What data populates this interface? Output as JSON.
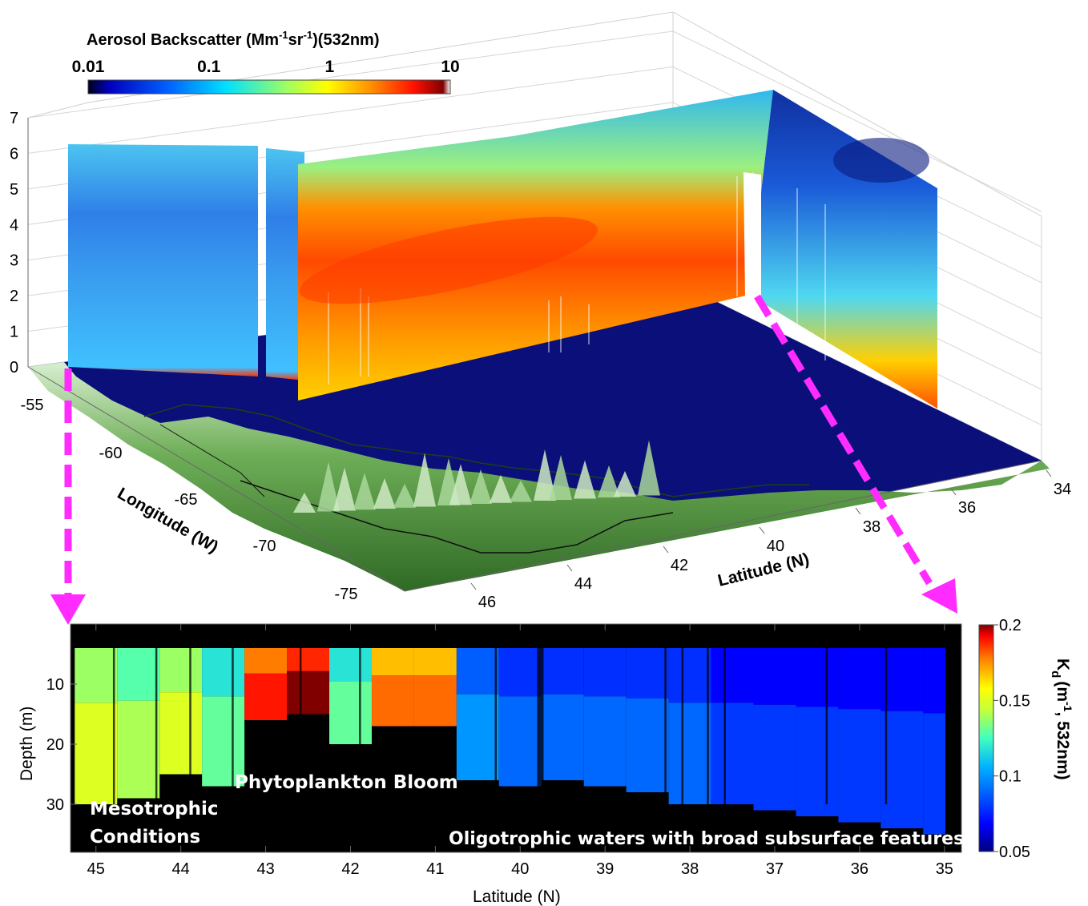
{
  "colors": {
    "magenta_arrow": "#ff2bff",
    "ocean": "#0b0f7a",
    "land": "#4c8a3c",
    "black": "#000000"
  },
  "colormaps": {
    "jet": [
      "#000080",
      "#0000ff",
      "#0080ff",
      "#00ffff",
      "#80ff80",
      "#ffff00",
      "#ff8000",
      "#ff0000",
      "#800000"
    ]
  },
  "chart_data": [
    {
      "type": "heatmap",
      "subtype": "3d-curtain",
      "colorbar": {
        "title_parts": [
          "Aerosol Backscatter (Mm",
          "-1",
          "sr",
          "-1",
          ")(532nm)"
        ],
        "ticks": [
          "0.01",
          "0.1",
          "1",
          "10"
        ],
        "scale": "log",
        "range": [
          0.01,
          10
        ],
        "placement": "top-left, horizontal"
      },
      "z_ticks": [
        "0",
        "1",
        "2",
        "3",
        "4",
        "5",
        "6",
        "7"
      ],
      "zlim": [
        0,
        7
      ],
      "xlabel": "Longitude (W)",
      "x_ticks": [
        "-55",
        "-60",
        "-65",
        "-70",
        "-75"
      ],
      "ylabel": "Latitude (N)",
      "y_ticks": [
        "46",
        "44",
        "42",
        "40",
        "38",
        "36",
        "34"
      ],
      "grid": true
    },
    {
      "type": "heatmap",
      "xlabel": "Latitude (N)",
      "x_ticks": [
        "45",
        "44",
        "43",
        "42",
        "41",
        "40",
        "39",
        "38",
        "37",
        "36",
        "35"
      ],
      "xlim": [
        45.3,
        34.8
      ],
      "ylabel": "Depth (m)",
      "y_ticks": [
        "10",
        "20",
        "30"
      ],
      "ylim": [
        0,
        38
      ],
      "colorbar": {
        "ticks": [
          "0.05",
          "0.1",
          "0.15",
          "0.2"
        ],
        "range": [
          0.05,
          0.2
        ],
        "label_main": "K",
        "label_sub": "d",
        "label_rest": "(m",
        "label_sup": "-1",
        "label_tail": ", 532nm)",
        "placement": "right, vertical"
      },
      "annotations": {
        "mesotrophic_line1": "Mesotrophic",
        "mesotrophic_line2": "Conditions",
        "bloom": "Phytoplankton Bloom",
        "oligotrophic": "Oligotrophic waters with broad subsurface features"
      },
      "kd_profile": [
        {
          "lat": 45.0,
          "kd": 0.15,
          "bottom_depth": 30
        },
        {
          "lat": 44.5,
          "kd": 0.14,
          "bottom_depth": 29
        },
        {
          "lat": 44.0,
          "kd": 0.15,
          "bottom_depth": 25
        },
        {
          "lat": 43.5,
          "kd": 0.13,
          "bottom_depth": 27
        },
        {
          "lat": 43.0,
          "kd": 0.19,
          "bottom_depth": 16
        },
        {
          "lat": 42.5,
          "kd": 0.2,
          "bottom_depth": 15
        },
        {
          "lat": 42.0,
          "kd": 0.13,
          "bottom_depth": 20
        },
        {
          "lat": 41.5,
          "kd": 0.18,
          "bottom_depth": 17
        },
        {
          "lat": 41.0,
          "kd": 0.18,
          "bottom_depth": 17
        },
        {
          "lat": 40.5,
          "kd": 0.1,
          "bottom_depth": 26
        },
        {
          "lat": 40.0,
          "kd": 0.09,
          "bottom_depth": 27
        },
        {
          "lat": 39.5,
          "kd": 0.09,
          "bottom_depth": 26
        },
        {
          "lat": 39.0,
          "kd": 0.09,
          "bottom_depth": 27
        },
        {
          "lat": 38.5,
          "kd": 0.09,
          "bottom_depth": 28
        },
        {
          "lat": 38.0,
          "kd": 0.09,
          "bottom_depth": 30
        },
        {
          "lat": 37.5,
          "kd": 0.08,
          "bottom_depth": 30
        },
        {
          "lat": 37.0,
          "kd": 0.08,
          "bottom_depth": 31
        },
        {
          "lat": 36.5,
          "kd": 0.08,
          "bottom_depth": 32
        },
        {
          "lat": 36.0,
          "kd": 0.08,
          "bottom_depth": 33
        },
        {
          "lat": 35.5,
          "kd": 0.08,
          "bottom_depth": 34
        },
        {
          "lat": 35.0,
          "kd": 0.08,
          "bottom_depth": 35
        }
      ]
    }
  ]
}
